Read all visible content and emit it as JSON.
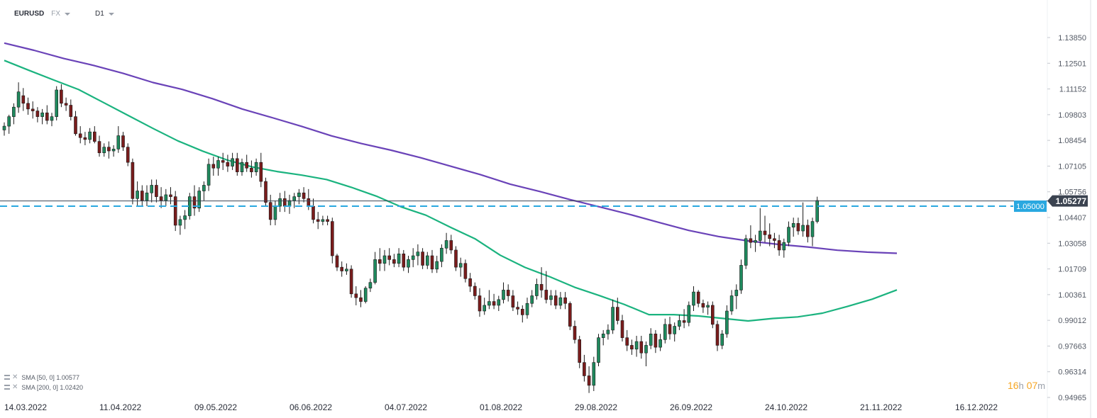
{
  "header": {
    "symbol": "EURUSD",
    "market": "FX",
    "timeframe": "D1"
  },
  "indicators": [
    {
      "label": "SMA [50, 0] 1.00577",
      "color": "#1bb37f"
    },
    {
      "label": "SMA [200, 0] 1.02420",
      "color": "#6a43b8"
    }
  ],
  "timer": {
    "hours": "16",
    "hours_unit": "h",
    "minutes": "07",
    "minutes_unit": "m"
  },
  "chart_data": {
    "type": "candlestick",
    "y_ticks": [
      "1.13850",
      "1.12501",
      "1.11152",
      "1.09803",
      "1.08454",
      "1.07105",
      "1.05756",
      "1.04407",
      "1.03058",
      "1.01709",
      "1.00361",
      "0.99012",
      "0.97663",
      "0.96314",
      "0.94965"
    ],
    "x_ticks": [
      "14.03.2022",
      "11.04.2022",
      "09.05.2022",
      "06.06.2022",
      "04.07.2022",
      "01.08.2022",
      "29.08.2022",
      "26.09.2022",
      "24.10.2022",
      "21.11.2022",
      "16.12.2022"
    ],
    "ylim": [
      0.94965,
      1.1385
    ],
    "last_price": "1.05277",
    "level_line": "1.05000",
    "colors": {
      "up": "#1f8a5e",
      "down": "#7a1c1c",
      "sma50": "#1bb37f",
      "sma200": "#6a43b8",
      "level": "#29a8e0",
      "last_price_bg": "#3b4350"
    },
    "candles": [
      [
        1.09,
        1.094,
        1.087,
        1.092
      ],
      [
        1.092,
        1.098,
        1.088,
        1.097
      ],
      [
        1.097,
        1.104,
        1.093,
        1.102
      ],
      [
        1.102,
        1.115,
        1.099,
        1.11
      ],
      [
        1.108,
        1.112,
        1.1,
        1.104
      ],
      [
        1.104,
        1.107,
        1.098,
        1.101
      ],
      [
        1.101,
        1.105,
        1.096,
        1.1
      ],
      [
        1.1,
        1.102,
        1.094,
        1.097
      ],
      [
        1.097,
        1.101,
        1.093,
        1.099
      ],
      [
        1.099,
        1.103,
        1.093,
        1.095
      ],
      [
        1.095,
        1.099,
        1.092,
        1.097
      ],
      [
        1.097,
        1.113,
        1.095,
        1.111
      ],
      [
        1.111,
        1.114,
        1.102,
        1.104
      ],
      [
        1.104,
        1.107,
        1.1,
        1.103
      ],
      [
        1.103,
        1.106,
        1.095,
        1.097
      ],
      [
        1.097,
        1.1,
        1.087,
        1.088
      ],
      [
        1.088,
        1.092,
        1.083,
        1.086
      ],
      [
        1.086,
        1.089,
        1.082,
        1.085
      ],
      [
        1.085,
        1.091,
        1.083,
        1.089
      ],
      [
        1.089,
        1.092,
        1.083,
        1.084
      ],
      [
        1.084,
        1.087,
        1.076,
        1.078
      ],
      [
        1.078,
        1.083,
        1.076,
        1.081
      ],
      [
        1.081,
        1.084,
        1.075,
        1.079
      ],
      [
        1.079,
        1.082,
        1.076,
        1.08
      ],
      [
        1.08,
        1.092,
        1.078,
        1.087
      ],
      [
        1.087,
        1.089,
        1.079,
        1.081
      ],
      [
        1.081,
        1.083,
        1.071,
        1.073
      ],
      [
        1.073,
        1.075,
        1.051,
        1.054
      ],
      [
        1.054,
        1.063,
        1.05,
        1.058
      ],
      [
        1.058,
        1.061,
        1.05,
        1.053
      ],
      [
        1.053,
        1.061,
        1.05,
        1.057
      ],
      [
        1.057,
        1.064,
        1.052,
        1.061
      ],
      [
        1.061,
        1.064,
        1.052,
        1.055
      ],
      [
        1.055,
        1.06,
        1.049,
        1.053
      ],
      [
        1.053,
        1.059,
        1.05,
        1.056
      ],
      [
        1.056,
        1.06,
        1.051,
        1.055
      ],
      [
        1.055,
        1.058,
        1.037,
        1.04
      ],
      [
        1.04,
        1.045,
        1.035,
        1.043
      ],
      [
        1.043,
        1.048,
        1.038,
        1.045
      ],
      [
        1.045,
        1.057,
        1.043,
        1.055
      ],
      [
        1.055,
        1.061,
        1.045,
        1.049
      ],
      [
        1.049,
        1.06,
        1.047,
        1.058
      ],
      [
        1.058,
        1.063,
        1.053,
        1.061
      ],
      [
        1.061,
        1.075,
        1.058,
        1.072
      ],
      [
        1.072,
        1.076,
        1.066,
        1.07
      ],
      [
        1.07,
        1.076,
        1.066,
        1.074
      ],
      [
        1.074,
        1.078,
        1.069,
        1.073
      ],
      [
        1.073,
        1.077,
        1.068,
        1.071
      ],
      [
        1.071,
        1.078,
        1.069,
        1.075
      ],
      [
        1.075,
        1.078,
        1.066,
        1.068
      ],
      [
        1.068,
        1.075,
        1.066,
        1.073
      ],
      [
        1.073,
        1.077,
        1.068,
        1.07
      ],
      [
        1.07,
        1.074,
        1.065,
        1.068
      ],
      [
        1.068,
        1.075,
        1.066,
        1.073
      ],
      [
        1.073,
        1.078,
        1.06,
        1.063
      ],
      [
        1.063,
        1.065,
        1.05,
        1.052
      ],
      [
        1.052,
        1.056,
        1.04,
        1.043
      ],
      [
        1.043,
        1.053,
        1.04,
        1.05
      ],
      [
        1.05,
        1.057,
        1.047,
        1.054
      ],
      [
        1.054,
        1.058,
        1.047,
        1.05
      ],
      [
        1.05,
        1.056,
        1.046,
        1.053
      ],
      [
        1.053,
        1.057,
        1.049,
        1.055
      ],
      [
        1.055,
        1.059,
        1.051,
        1.057
      ],
      [
        1.057,
        1.06,
        1.052,
        1.054
      ],
      [
        1.054,
        1.059,
        1.048,
        1.05
      ],
      [
        1.05,
        1.054,
        1.041,
        1.043
      ],
      [
        1.043,
        1.047,
        1.038,
        1.042
      ],
      [
        1.042,
        1.045,
        1.04,
        1.043
      ],
      [
        1.043,
        1.045,
        1.04,
        1.042
      ],
      [
        1.042,
        1.044,
        1.02,
        1.024
      ],
      [
        1.024,
        1.025,
        1.016,
        1.018
      ],
      [
        1.018,
        1.021,
        1.013,
        1.016
      ],
      [
        1.016,
        1.02,
        1.014,
        1.017
      ],
      [
        1.017,
        1.019,
        1.002,
        1.004
      ],
      [
        1.004,
        1.008,
        0.998,
        1.002
      ],
      [
        1.002,
        1.006,
        0.997,
        1.0
      ],
      [
        1.0,
        1.008,
        0.999,
        1.007
      ],
      [
        1.007,
        1.012,
        1.005,
        1.01
      ],
      [
        1.01,
        1.026,
        1.009,
        1.022
      ],
      [
        1.022,
        1.028,
        1.016,
        1.02
      ],
      [
        1.02,
        1.027,
        1.016,
        1.024
      ],
      [
        1.024,
        1.028,
        1.019,
        1.022
      ],
      [
        1.022,
        1.025,
        1.018,
        1.02
      ],
      [
        1.02,
        1.028,
        1.018,
        1.025
      ],
      [
        1.025,
        1.027,
        1.016,
        1.018
      ],
      [
        1.018,
        1.024,
        1.015,
        1.022
      ],
      [
        1.022,
        1.028,
        1.018,
        1.024
      ],
      [
        1.024,
        1.03,
        1.019,
        1.026
      ],
      [
        1.026,
        1.028,
        1.017,
        1.019
      ],
      [
        1.019,
        1.026,
        1.017,
        1.024
      ],
      [
        1.024,
        1.027,
        1.015,
        1.017
      ],
      [
        1.017,
        1.024,
        1.015,
        1.021
      ],
      [
        1.021,
        1.03,
        1.018,
        1.028
      ],
      [
        1.028,
        1.036,
        1.025,
        1.032
      ],
      [
        1.032,
        1.035,
        1.025,
        1.027
      ],
      [
        1.027,
        1.029,
        1.016,
        1.018
      ],
      [
        1.018,
        1.023,
        1.013,
        1.02
      ],
      [
        1.02,
        1.022,
        1.01,
        1.012
      ],
      [
        1.012,
        1.015,
        1.005,
        1.008
      ],
      [
        1.008,
        1.01,
        1.001,
        1.003
      ],
      [
        1.003,
        1.007,
        0.992,
        0.995
      ],
      [
        0.995,
        1.002,
        0.993,
        0.998
      ],
      [
        0.998,
        1.006,
        0.996,
        1.0
      ],
      [
        1.0,
        1.004,
        0.996,
        0.998
      ],
      [
        0.998,
        1.003,
        0.995,
        1.001
      ],
      [
        1.001,
        1.01,
        0.999,
        1.006
      ],
      [
        1.006,
        1.009,
        1.0,
        1.003
      ],
      [
        1.003,
        1.006,
        0.995,
        0.997
      ],
      [
        0.997,
        1.0,
        0.993,
        0.996
      ],
      [
        0.996,
        0.998,
        0.989,
        0.993
      ],
      [
        0.993,
        1.002,
        0.991,
        0.999
      ],
      [
        0.999,
        1.006,
        0.997,
        1.003
      ],
      [
        1.003,
        1.012,
        1.001,
        1.009
      ],
      [
        1.009,
        1.018,
        1.002,
        1.006
      ],
      [
        1.006,
        1.016,
        0.999,
        1.001
      ],
      [
        1.001,
        1.006,
        0.998,
        1.003
      ],
      [
        1.003,
        1.006,
        0.996,
        0.998
      ],
      [
        0.998,
        1.005,
        0.996,
        1.002
      ],
      [
        1.002,
        1.005,
        0.996,
        0.999
      ],
      [
        0.999,
        1.0,
        0.985,
        0.987
      ],
      [
        0.987,
        0.99,
        0.978,
        0.98
      ],
      [
        0.98,
        0.982,
        0.965,
        0.968
      ],
      [
        0.968,
        0.972,
        0.958,
        0.961
      ],
      [
        0.961,
        0.966,
        0.952,
        0.956
      ],
      [
        0.956,
        0.971,
        0.953,
        0.968
      ],
      [
        0.968,
        0.983,
        0.966,
        0.981
      ],
      [
        0.981,
        0.985,
        0.977,
        0.983
      ],
      [
        0.983,
        0.988,
        0.98,
        0.985
      ],
      [
        0.985,
        1.001,
        0.983,
        0.997
      ],
      [
        0.997,
        1.002,
        0.988,
        0.99
      ],
      [
        0.99,
        0.993,
        0.979,
        0.981
      ],
      [
        0.981,
        0.985,
        0.974,
        0.977
      ],
      [
        0.977,
        0.98,
        0.972,
        0.975
      ],
      [
        0.975,
        0.982,
        0.971,
        0.979
      ],
      [
        0.979,
        0.982,
        0.97,
        0.973
      ],
      [
        0.973,
        0.979,
        0.966,
        0.977
      ],
      [
        0.977,
        0.986,
        0.975,
        0.983
      ],
      [
        0.983,
        0.985,
        0.973,
        0.976
      ],
      [
        0.976,
        0.983,
        0.974,
        0.98
      ],
      [
        0.98,
        0.991,
        0.978,
        0.988
      ],
      [
        0.988,
        0.992,
        0.98,
        0.983
      ],
      [
        0.983,
        0.989,
        0.979,
        0.987
      ],
      [
        0.987,
        0.993,
        0.985,
        0.99
      ],
      [
        0.99,
        0.996,
        0.986,
        0.989
      ],
      [
        0.989,
        1.0,
        0.987,
        0.998
      ],
      [
        0.998,
        1.008,
        0.995,
        1.005
      ],
      [
        1.005,
        1.006,
        0.997,
        0.999
      ],
      [
        0.999,
        1.001,
        0.994,
        0.997
      ],
      [
        0.997,
        1.0,
        0.993,
        0.998
      ],
      [
        0.998,
        1.0,
        0.986,
        0.988
      ],
      [
        0.988,
        0.99,
        0.974,
        0.977
      ],
      [
        0.977,
        0.985,
        0.975,
        0.983
      ],
      [
        0.983,
        0.998,
        0.981,
        0.995
      ],
      [
        0.995,
        1.006,
        0.993,
        1.003
      ],
      [
        1.003,
        1.009,
        0.996,
        1.006
      ],
      [
        1.006,
        1.022,
        1.004,
        1.019
      ],
      [
        1.019,
        1.035,
        1.017,
        1.033
      ],
      [
        1.033,
        1.04,
        1.028,
        1.031
      ],
      [
        1.031,
        1.035,
        1.026,
        1.032
      ],
      [
        1.032,
        1.049,
        1.029,
        1.037
      ],
      [
        1.037,
        1.045,
        1.031,
        1.035
      ],
      [
        1.035,
        1.041,
        1.029,
        1.033
      ],
      [
        1.033,
        1.036,
        1.028,
        1.032
      ],
      [
        1.032,
        1.035,
        1.024,
        1.027
      ],
      [
        1.027,
        1.033,
        1.023,
        1.031
      ],
      [
        1.031,
        1.042,
        1.029,
        1.039
      ],
      [
        1.039,
        1.044,
        1.034,
        1.041
      ],
      [
        1.041,
        1.044,
        1.035,
        1.037
      ],
      [
        1.037,
        1.052,
        1.034,
        1.04
      ],
      [
        1.04,
        1.043,
        1.031,
        1.034
      ],
      [
        1.034,
        1.044,
        1.029,
        1.042
      ],
      [
        1.042,
        1.055,
        1.041,
        1.053
      ]
    ],
    "series": [
      {
        "name": "SMA [50, 0]",
        "values": [
          1.1265,
          1.1213,
          1.1162,
          1.1112,
          1.1044,
          1.0976,
          1.0908,
          1.0843,
          1.0789,
          1.0742,
          1.0706,
          1.0682,
          1.0663,
          1.064,
          1.0599,
          1.0553,
          1.0497,
          1.0453,
          1.0389,
          1.0328,
          1.0243,
          1.0179,
          1.013,
          1.0075,
          1.0031,
          0.9985,
          0.9931,
          0.9931,
          0.9924,
          0.9911,
          0.9898,
          0.9911,
          0.9919,
          0.9939,
          0.9974,
          1.0012,
          1.0061
        ]
      },
      {
        "name": "SMA [200, 0]",
        "values": [
          1.1356,
          1.1318,
          1.1275,
          1.1239,
          1.1197,
          1.1149,
          1.1112,
          1.1064,
          1.101,
          1.0965,
          1.0919,
          1.0869,
          1.0829,
          1.0794,
          1.0754,
          1.071,
          1.0666,
          1.0616,
          1.0577,
          1.0535,
          1.0497,
          1.0458,
          1.0415,
          1.0373,
          1.0341,
          1.0318,
          1.03,
          1.0286,
          1.0269,
          1.0259,
          1.0253
        ]
      }
    ]
  }
}
